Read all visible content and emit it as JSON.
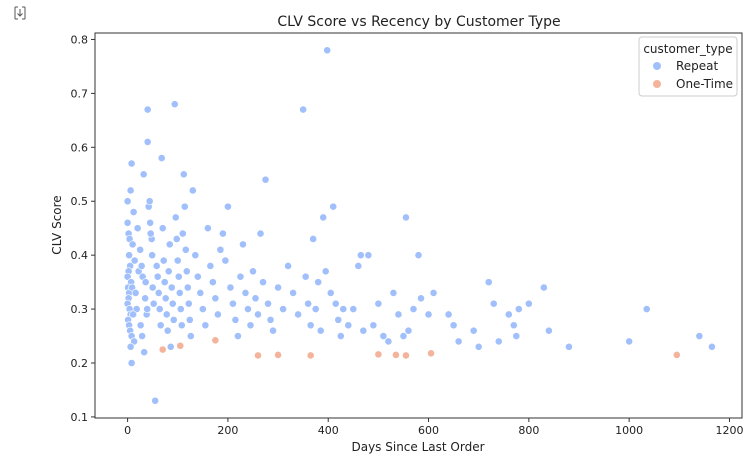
{
  "toolbar": {
    "icon": "expand-output-icon"
  },
  "chart_data": {
    "type": "scatter",
    "title": "CLV Score vs Recency by Customer Type",
    "xlabel": "Days Since Last Order",
    "ylabel": "CLV Score",
    "xlim": [
      -65,
      1225
    ],
    "ylim": [
      0.098,
      0.812
    ],
    "xticks": [
      0,
      200,
      400,
      600,
      800,
      1000,
      1200
    ],
    "yticks": [
      0.1,
      0.2,
      0.3,
      0.4,
      0.5,
      0.6,
      0.7,
      0.8
    ],
    "xtick_labels": [
      "0",
      "200",
      "400",
      "600",
      "800",
      "1000",
      "1200"
    ],
    "ytick_labels": [
      "0.1",
      "0.2",
      "0.3",
      "0.4",
      "0.5",
      "0.6",
      "0.7",
      "0.8"
    ],
    "grid": false,
    "legend": {
      "title": "customer_type",
      "placement": "top-right"
    },
    "series": [
      {
        "name": "Repeat",
        "color": "#a1c0fb",
        "points": [
          [
            0,
            0.46
          ],
          [
            2,
            0.44
          ],
          [
            4,
            0.43
          ],
          [
            6,
            0.52
          ],
          [
            8,
            0.57
          ],
          [
            3,
            0.4
          ],
          [
            5,
            0.38
          ],
          [
            2,
            0.37
          ],
          [
            0,
            0.36
          ],
          [
            7,
            0.35
          ],
          [
            1,
            0.34
          ],
          [
            3,
            0.33
          ],
          [
            2,
            0.32
          ],
          [
            0,
            0.31
          ],
          [
            4,
            0.3
          ],
          [
            6,
            0.29
          ],
          [
            1,
            0.28
          ],
          [
            3,
            0.27
          ],
          [
            5,
            0.26
          ],
          [
            8,
            0.25
          ],
          [
            9,
            0.34
          ],
          [
            10,
            0.42
          ],
          [
            12,
            0.48
          ],
          [
            14,
            0.39
          ],
          [
            16,
            0.33
          ],
          [
            18,
            0.3
          ],
          [
            20,
            0.45
          ],
          [
            22,
            0.37
          ],
          [
            11,
            0.29
          ],
          [
            13,
            0.24
          ],
          [
            0,
            0.5
          ],
          [
            6,
            0.23
          ],
          [
            8,
            0.2
          ],
          [
            25,
            0.41
          ],
          [
            28,
            0.38
          ],
          [
            30,
            0.36
          ],
          [
            32,
            0.55
          ],
          [
            35,
            0.32
          ],
          [
            38,
            0.29
          ],
          [
            40,
            0.61
          ],
          [
            42,
            0.49
          ],
          [
            45,
            0.46
          ],
          [
            48,
            0.43
          ],
          [
            50,
            0.34
          ],
          [
            52,
            0.31
          ],
          [
            26,
            0.27
          ],
          [
            29,
            0.25
          ],
          [
            33,
            0.22
          ],
          [
            36,
            0.35
          ],
          [
            39,
            0.3
          ],
          [
            40,
            0.67
          ],
          [
            44,
            0.5
          ],
          [
            46,
            0.44
          ],
          [
            49,
            0.4
          ],
          [
            55,
            0.13
          ],
          [
            58,
            0.38
          ],
          [
            60,
            0.36
          ],
          [
            62,
            0.33
          ],
          [
            64,
            0.3
          ],
          [
            66,
            0.27
          ],
          [
            68,
            0.58
          ],
          [
            70,
            0.45
          ],
          [
            72,
            0.39
          ],
          [
            74,
            0.35
          ],
          [
            76,
            0.32
          ],
          [
            78,
            0.29
          ],
          [
            80,
            0.26
          ],
          [
            82,
            0.37
          ],
          [
            84,
            0.42
          ],
          [
            86,
            0.23
          ],
          [
            88,
            0.34
          ],
          [
            90,
            0.31
          ],
          [
            92,
            0.28
          ],
          [
            94,
            0.68
          ],
          [
            96,
            0.47
          ],
          [
            98,
            0.43
          ],
          [
            100,
            0.39
          ],
          [
            102,
            0.36
          ],
          [
            104,
            0.33
          ],
          [
            106,
            0.3
          ],
          [
            108,
            0.27
          ],
          [
            110,
            0.44
          ],
          [
            112,
            0.55
          ],
          [
            114,
            0.49
          ],
          [
            116,
            0.41
          ],
          [
            118,
            0.37
          ],
          [
            120,
            0.34
          ],
          [
            122,
            0.31
          ],
          [
            124,
            0.28
          ],
          [
            126,
            0.25
          ],
          [
            130,
            0.52
          ],
          [
            135,
            0.4
          ],
          [
            140,
            0.36
          ],
          [
            145,
            0.33
          ],
          [
            150,
            0.3
          ],
          [
            155,
            0.27
          ],
          [
            160,
            0.45
          ],
          [
            165,
            0.38
          ],
          [
            170,
            0.35
          ],
          [
            175,
            0.32
          ],
          [
            180,
            0.29
          ],
          [
            185,
            0.41
          ],
          [
            190,
            0.44
          ],
          [
            195,
            0.39
          ],
          [
            200,
            0.49
          ],
          [
            205,
            0.34
          ],
          [
            210,
            0.31
          ],
          [
            215,
            0.28
          ],
          [
            220,
            0.25
          ],
          [
            225,
            0.36
          ],
          [
            230,
            0.42
          ],
          [
            235,
            0.33
          ],
          [
            240,
            0.3
          ],
          [
            245,
            0.27
          ],
          [
            250,
            0.37
          ],
          [
            255,
            0.32
          ],
          [
            260,
            0.29
          ],
          [
            265,
            0.44
          ],
          [
            270,
            0.35
          ],
          [
            275,
            0.54
          ],
          [
            280,
            0.31
          ],
          [
            285,
            0.28
          ],
          [
            290,
            0.26
          ],
          [
            300,
            0.34
          ],
          [
            310,
            0.3
          ],
          [
            320,
            0.38
          ],
          [
            330,
            0.33
          ],
          [
            340,
            0.29
          ],
          [
            350,
            0.67
          ],
          [
            355,
            0.36
          ],
          [
            360,
            0.31
          ],
          [
            365,
            0.27
          ],
          [
            370,
            0.43
          ],
          [
            375,
            0.3
          ],
          [
            380,
            0.35
          ],
          [
            385,
            0.26
          ],
          [
            390,
            0.47
          ],
          [
            395,
            0.37
          ],
          [
            398,
            0.78
          ],
          [
            405,
            0.33
          ],
          [
            410,
            0.49
          ],
          [
            415,
            0.31
          ],
          [
            420,
            0.28
          ],
          [
            425,
            0.25
          ],
          [
            430,
            0.3
          ],
          [
            440,
            0.27
          ],
          [
            450,
            0.3
          ],
          [
            460,
            0.38
          ],
          [
            465,
            0.4
          ],
          [
            470,
            0.26
          ],
          [
            480,
            0.4
          ],
          [
            490,
            0.27
          ],
          [
            500,
            0.31
          ],
          [
            510,
            0.25
          ],
          [
            520,
            0.24
          ],
          [
            530,
            0.33
          ],
          [
            540,
            0.29
          ],
          [
            550,
            0.25
          ],
          [
            555,
            0.47
          ],
          [
            560,
            0.26
          ],
          [
            570,
            0.3
          ],
          [
            580,
            0.4
          ],
          [
            585,
            0.32
          ],
          [
            600,
            0.29
          ],
          [
            610,
            0.33
          ],
          [
            640,
            0.29
          ],
          [
            650,
            0.27
          ],
          [
            660,
            0.24
          ],
          [
            690,
            0.26
          ],
          [
            700,
            0.23
          ],
          [
            720,
            0.35
          ],
          [
            730,
            0.31
          ],
          [
            740,
            0.24
          ],
          [
            760,
            0.29
          ],
          [
            770,
            0.27
          ],
          [
            775,
            0.25
          ],
          [
            780,
            0.3
          ],
          [
            800,
            0.31
          ],
          [
            830,
            0.34
          ],
          [
            840,
            0.26
          ],
          [
            880,
            0.23
          ],
          [
            1000,
            0.24
          ],
          [
            1035,
            0.3
          ],
          [
            1140,
            0.25
          ],
          [
            1165,
            0.23
          ]
        ]
      },
      {
        "name": "One-Time",
        "color": "#f4b49b",
        "points": [
          [
            70,
            0.225
          ],
          [
            105,
            0.232
          ],
          [
            175,
            0.242
          ],
          [
            260,
            0.214
          ],
          [
            300,
            0.215
          ],
          [
            365,
            0.214
          ],
          [
            500,
            0.216
          ],
          [
            535,
            0.215
          ],
          [
            555,
            0.214
          ],
          [
            605,
            0.218
          ],
          [
            1095,
            0.215
          ]
        ]
      }
    ]
  }
}
